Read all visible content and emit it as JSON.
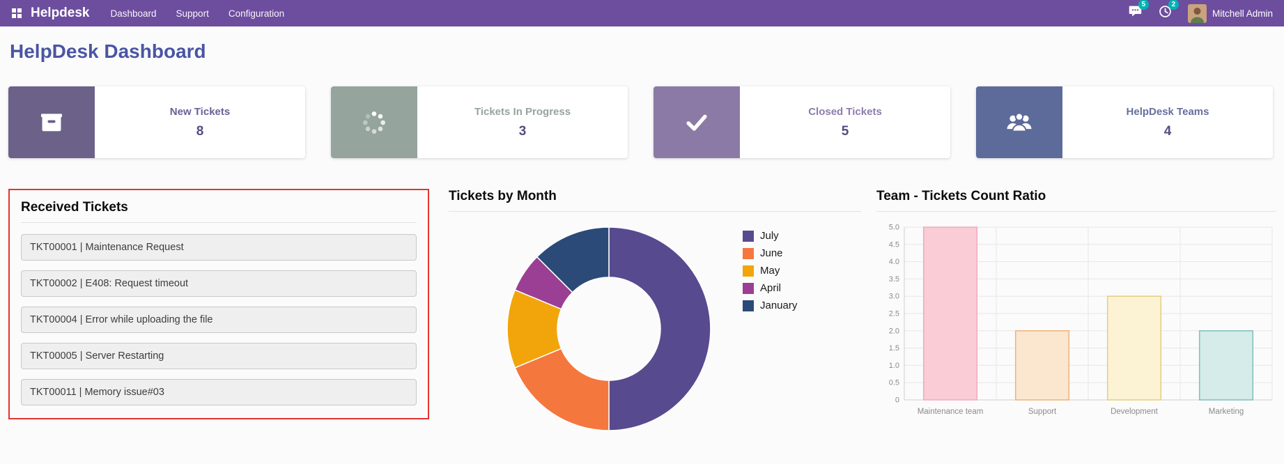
{
  "nav": {
    "app_name": "Helpdesk",
    "items": [
      "Dashboard",
      "Support",
      "Configuration"
    ],
    "messages_badge": "5",
    "activity_badge": "2",
    "user_name": "Mitchell Admin",
    "bar_color": "#6d4d9e",
    "badge_color": "#00b3b3"
  },
  "page": {
    "title": "HelpDesk Dashboard"
  },
  "kpis": [
    {
      "label": "New Tickets",
      "value": "8",
      "icon": "inbox-icon",
      "color": "#6b6189"
    },
    {
      "label": "Tickets In Progress",
      "value": "3",
      "icon": "spinner-icon",
      "color": "#95a49d"
    },
    {
      "label": "Closed Tickets",
      "value": "5",
      "icon": "check-icon",
      "color": "#8b7aa5"
    },
    {
      "label": "HelpDesk Teams",
      "value": "4",
      "icon": "users-icon",
      "color": "#5d6b9b"
    }
  ],
  "received_tickets": {
    "title": "Received Tickets",
    "highlight_border": "#e3342e",
    "items": [
      "TKT00001 | Maintenance Request",
      "TKT00002 | E408: Request timeout",
      "TKT00004 | Error while uploading the file",
      "TKT00005 | Server Restarting",
      "TKT00011 | Memory issue#03"
    ]
  },
  "chart_data": [
    {
      "type": "pie",
      "title": "Tickets by Month",
      "donut": true,
      "labels": [
        "July",
        "June",
        "May",
        "April",
        "January"
      ],
      "values": [
        8,
        3,
        2,
        1,
        2
      ],
      "colors": [
        "#584a8f",
        "#f4773e",
        "#f2a50a",
        "#9a3f93",
        "#2c4a78"
      ],
      "legend_position": "right"
    },
    {
      "type": "bar",
      "title": "Team - Tickets Count Ratio",
      "categories": [
        "Maintenance team",
        "Support",
        "Development",
        "Marketing"
      ],
      "values": [
        5,
        2,
        3,
        2
      ],
      "fill_colors": [
        "#f9ccd6",
        "#fbe7d0",
        "#fbf3d3",
        "#d5ecea"
      ],
      "border_colors": [
        "#f2a9bb",
        "#eeb277",
        "#e3cf7c",
        "#7fbfb9"
      ],
      "ylim": [
        0,
        5
      ],
      "ytick_step": 0.5,
      "grid": true,
      "xlabel": "",
      "ylabel": ""
    }
  ]
}
